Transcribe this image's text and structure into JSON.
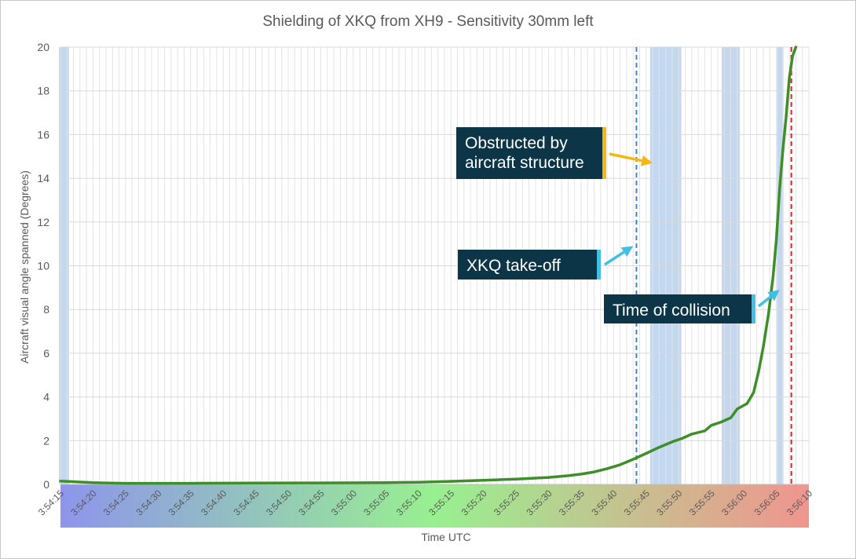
{
  "chart_data": {
    "type": "line",
    "title": "Shielding of XKQ from XH9 - Sensitivity 30mm left",
    "xlabel": "Time UTC",
    "ylabel": "Aircraft visual angle spanned (Degrees)",
    "x_unit": "seconds after 3:54:15 UTC",
    "xlim": [
      0,
      115
    ],
    "ylim": [
      0,
      20
    ],
    "x_tick_step": 1,
    "x_tick_labels": [
      "3:54:15",
      "3:54:20",
      "3:54:25",
      "3:54:30",
      "3:54:35",
      "3:54:40",
      "3:54:45",
      "3:54:50",
      "3:54:55",
      "3:55:00",
      "3:55:05",
      "3:55:10",
      "3:55:15",
      "3:55:20",
      "3:55:25",
      "3:55:30",
      "3:55:35",
      "3:55:40",
      "3:55:45",
      "3:55:50",
      "3:55:55",
      "3:56:00",
      "3:56:05",
      "3:56:10"
    ],
    "x_tick_values": [
      0,
      5,
      10,
      15,
      20,
      25,
      30,
      35,
      40,
      45,
      50,
      55,
      60,
      65,
      70,
      75,
      80,
      85,
      90,
      95,
      100,
      105,
      110,
      115
    ],
    "y_ticks": [
      0,
      2,
      4,
      6,
      8,
      10,
      12,
      14,
      16,
      18,
      20
    ],
    "series": [
      {
        "name": "Aircraft visual angle spanned",
        "color": "#3e8e2a",
        "x": [
          0,
          5,
          10,
          20,
          30,
          40,
          50,
          55,
          60,
          65,
          70,
          75,
          78,
          80,
          82,
          84,
          86,
          88,
          90,
          92,
          94,
          95.5,
          97,
          99,
          100,
          101.5,
          103,
          104,
          105.5,
          106.5,
          107.3,
          108,
          108.8,
          109.5,
          110,
          110.5,
          111,
          111.5,
          112,
          112.5,
          113
        ],
        "y": [
          0.15,
          0.08,
          0.05,
          0.05,
          0.06,
          0.07,
          0.08,
          0.1,
          0.14,
          0.19,
          0.24,
          0.32,
          0.4,
          0.47,
          0.57,
          0.72,
          0.9,
          1.15,
          1.42,
          1.7,
          1.95,
          2.1,
          2.3,
          2.45,
          2.7,
          2.85,
          3.05,
          3.45,
          3.7,
          4.2,
          5.2,
          6.3,
          7.8,
          9.5,
          11.2,
          13.5,
          15.3,
          16.8,
          18.6,
          19.6,
          20
        ]
      }
    ],
    "obstructed_intervals": [
      [
        -0.6,
        1.3
      ],
      [
        90.6,
        95.4
      ],
      [
        101.6,
        104.4
      ],
      [
        110.1,
        111.1
      ]
    ],
    "shading_color": "#c3d8ef",
    "vertical_lines": [
      {
        "name": "XKQ take-off",
        "x": 88.5,
        "style": "dashed",
        "color": "#3f86cc"
      },
      {
        "name": "Time of collision",
        "x": 112.3,
        "style": "dashed",
        "color": "#e02020"
      }
    ],
    "time_band_colors": [
      "#8e95ec",
      "#98f090",
      "#f0958f"
    ],
    "annotations": [
      {
        "id": "obstructed",
        "text": "Obstructed by\naircraft structure",
        "arrow_color": "#f4b812",
        "arrow_target": [
          91,
          14.7
        ]
      },
      {
        "id": "takeoff",
        "text": "XKQ take-off",
        "arrow_color": "#41bfe4",
        "arrow_target": [
          88,
          10.9
        ]
      },
      {
        "id": "collision",
        "text": "Time of collision",
        "arrow_color": "#41bfe4",
        "arrow_target": [
          110.5,
          8.9
        ]
      }
    ]
  }
}
